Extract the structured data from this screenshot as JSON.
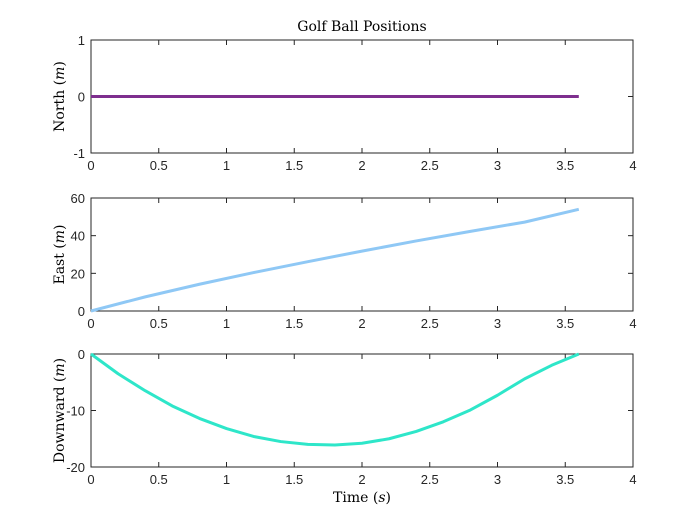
{
  "chart_data": [
    {
      "type": "line",
      "title": "Golf Ball Positions",
      "xlabel": "",
      "ylabel": "North (m)",
      "ylabel_parts": {
        "name": "North",
        "unit": "m"
      },
      "xlim": [
        0,
        4
      ],
      "ylim": [
        -1,
        1
      ],
      "xticks": [
        "0",
        "0.5",
        "1",
        "1.5",
        "2",
        "2.5",
        "3",
        "3.5",
        "4"
      ],
      "yticks": [
        "-1",
        "0",
        "1"
      ],
      "grid": false,
      "series": [
        {
          "color": "#7e2f8e",
          "x": [
            0,
            3.6
          ],
          "y": [
            0,
            0
          ]
        }
      ]
    },
    {
      "type": "line",
      "title": "",
      "xlabel": "",
      "ylabel": "East (m)",
      "ylabel_parts": {
        "name": "East",
        "unit": "m"
      },
      "xlim": [
        0,
        4
      ],
      "ylim": [
        0,
        60
      ],
      "xticks": [
        "0",
        "0.5",
        "1",
        "1.5",
        "2",
        "2.5",
        "3",
        "3.5",
        "4"
      ],
      "yticks": [
        "0",
        "20",
        "40",
        "60"
      ],
      "grid": false,
      "series": [
        {
          "color": "#8fc8f5",
          "x": [
            0,
            0.4,
            0.8,
            1.2,
            1.6,
            2.0,
            2.4,
            2.8,
            3.2,
            3.6
          ],
          "y": [
            0,
            7.5,
            14.2,
            20.4,
            26.2,
            31.8,
            37.2,
            42.3,
            47.2,
            54.0
          ]
        }
      ]
    },
    {
      "type": "line",
      "title": "",
      "xlabel": "Time (s)",
      "xlabel_parts": {
        "name": "Time",
        "unit": "s"
      },
      "ylabel": "Downward (m)",
      "ylabel_parts": {
        "name": "Downward",
        "unit": "m"
      },
      "xlim": [
        0,
        4
      ],
      "ylim": [
        -20,
        0
      ],
      "xticks": [
        "0",
        "0.5",
        "1",
        "1.5",
        "2",
        "2.5",
        "3",
        "3.5",
        "4"
      ],
      "yticks": [
        "-20",
        "-10",
        "0"
      ],
      "grid": false,
      "series": [
        {
          "color": "#2ee6c9",
          "x": [
            0,
            0.2,
            0.4,
            0.6,
            0.8,
            1.0,
            1.2,
            1.4,
            1.6,
            1.8,
            2.0,
            2.2,
            2.4,
            2.6,
            2.8,
            3.0,
            3.2,
            3.4,
            3.6
          ],
          "y": [
            0,
            -3.5,
            -6.5,
            -9.2,
            -11.4,
            -13.2,
            -14.6,
            -15.5,
            -16.0,
            -16.1,
            -15.8,
            -15.0,
            -13.7,
            -12.0,
            -9.9,
            -7.3,
            -4.4,
            -2.0,
            0
          ]
        }
      ]
    }
  ]
}
